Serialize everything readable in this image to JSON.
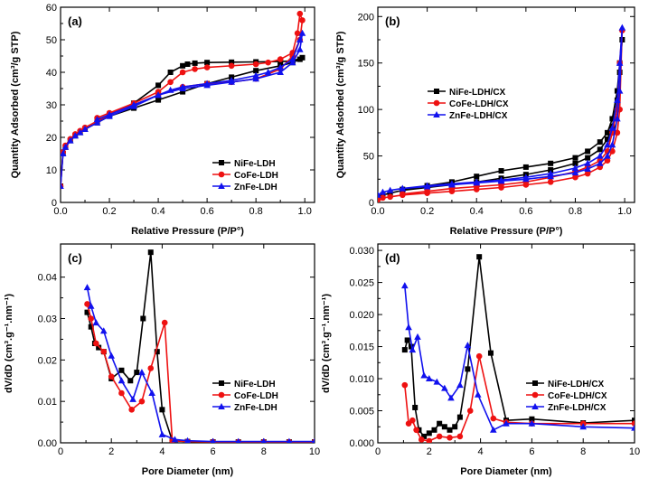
{
  "chart_data": [
    {
      "type": "line",
      "label": "(a)",
      "xlabel": "Relative Pressure (P/P°)",
      "ylabel": "Quantity Adsorbed (cm³/g STP)",
      "xlim": [
        0,
        1.04
      ],
      "ylim": [
        0,
        60
      ],
      "xticks": [
        0.0,
        0.2,
        0.4,
        0.6,
        0.8,
        1.0
      ],
      "xtick_labels": [
        "0.0",
        "0.2",
        "0.4",
        "0.6",
        "0.8",
        "1.0"
      ],
      "yticks": [
        0,
        10,
        20,
        30,
        40,
        50,
        60
      ],
      "ytick_labels": [
        "0",
        "10",
        "20",
        "30",
        "40",
        "50",
        "60"
      ],
      "legend": "bottom-right",
      "series": [
        {
          "name": "NiFe-LDH",
          "color": "#000000",
          "marker": "square",
          "x": [
            0.0,
            0.01,
            0.02,
            0.04,
            0.06,
            0.08,
            0.1,
            0.15,
            0.2,
            0.3,
            0.4,
            0.5,
            0.6,
            0.7,
            0.8,
            0.9,
            0.95,
            0.98,
            0.99,
            0.95,
            0.9,
            0.8,
            0.7,
            0.6,
            0.55,
            0.52,
            0.5,
            0.45,
            0.4,
            0.3,
            0.2,
            0.15
          ],
          "y": [
            5,
            15,
            17,
            19,
            20.5,
            21.5,
            22.5,
            24.5,
            26.5,
            29,
            31.5,
            34,
            36.5,
            38.5,
            40.5,
            42,
            43,
            44,
            44.5,
            43.5,
            43.3,
            43.2,
            43.1,
            43,
            42.8,
            42.5,
            42,
            40,
            36,
            30.5,
            27,
            25
          ]
        },
        {
          "name": "CoFe-LDH",
          "color": "#ee1111",
          "marker": "circle",
          "x": [
            0.0,
            0.01,
            0.02,
            0.04,
            0.06,
            0.08,
            0.1,
            0.15,
            0.2,
            0.3,
            0.4,
            0.5,
            0.6,
            0.7,
            0.8,
            0.9,
            0.95,
            0.98,
            0.99,
            0.98,
            0.97,
            0.95,
            0.9,
            0.85,
            0.8,
            0.7,
            0.6,
            0.55,
            0.5,
            0.45,
            0.4,
            0.3,
            0.2,
            0.15
          ],
          "y": [
            5,
            15.5,
            17.5,
            19.5,
            21,
            22,
            23,
            25,
            27,
            30,
            33,
            35.5,
            36.5,
            37,
            38,
            41,
            45,
            50,
            56,
            58,
            52,
            46,
            44,
            43,
            42.5,
            42,
            41.5,
            41,
            40,
            37,
            34,
            30.5,
            27.5,
            26
          ]
        },
        {
          "name": "ZnFe-LDH",
          "color": "#1111ee",
          "marker": "triangle",
          "x": [
            0.0,
            0.01,
            0.02,
            0.04,
            0.06,
            0.08,
            0.1,
            0.15,
            0.2,
            0.3,
            0.4,
            0.5,
            0.6,
            0.7,
            0.8,
            0.9,
            0.95,
            0.98,
            0.99,
            0.98,
            0.95,
            0.9,
            0.85,
            0.8,
            0.7,
            0.6,
            0.5,
            0.45,
            0.4,
            0.3,
            0.2,
            0.15
          ],
          "y": [
            5,
            15,
            17,
            19,
            20.5,
            21.5,
            22.5,
            24.5,
            26.5,
            29.5,
            33,
            35,
            36,
            37,
            38,
            40,
            43,
            47,
            52,
            50,
            44,
            41.5,
            40,
            39,
            37.5,
            36.5,
            35.5,
            34.5,
            33,
            30,
            27,
            25.5
          ]
        }
      ]
    },
    {
      "type": "line",
      "label": "(b)",
      "xlabel": "Relative Pressure (P/P°)",
      "ylabel": "Quantity Adsorbed (cm³/g STP)",
      "xlim": [
        0,
        1.04
      ],
      "ylim": [
        0,
        210
      ],
      "xticks": [
        0.0,
        0.2,
        0.4,
        0.6,
        0.8,
        1.0
      ],
      "xtick_labels": [
        "0.0",
        "0.2",
        "0.4",
        "0.6",
        "0.8",
        "1.0"
      ],
      "yticks": [
        0,
        50,
        100,
        150,
        200
      ],
      "ytick_labels": [
        "0",
        "50",
        "100",
        "150",
        "200"
      ],
      "legend": "center-left",
      "series": [
        {
          "name": "NiFe-LDH/CX",
          "color": "#000000",
          "marker": "square",
          "x": [
            0.0,
            0.02,
            0.05,
            0.1,
            0.2,
            0.3,
            0.4,
            0.5,
            0.6,
            0.7,
            0.8,
            0.85,
            0.9,
            0.93,
            0.95,
            0.97,
            0.98,
            0.99,
            0.98,
            0.97,
            0.95,
            0.93,
            0.9,
            0.85,
            0.8,
            0.7,
            0.6,
            0.5,
            0.4,
            0.3,
            0.2,
            0.1
          ],
          "y": [
            5,
            8,
            10,
            13,
            16,
            19,
            22,
            26,
            30,
            35,
            42,
            48,
            57,
            68,
            82,
            110,
            140,
            175,
            150,
            120,
            90,
            75,
            65,
            55,
            48,
            42,
            38,
            34,
            28,
            22,
            18,
            14
          ]
        },
        {
          "name": "CoFe-LDH/CX",
          "color": "#ee1111",
          "marker": "circle",
          "x": [
            0.0,
            0.02,
            0.05,
            0.1,
            0.2,
            0.3,
            0.4,
            0.5,
            0.6,
            0.7,
            0.8,
            0.85,
            0.9,
            0.93,
            0.95,
            0.97,
            0.98,
            0.99,
            0.98,
            0.97,
            0.95,
            0.93,
            0.9,
            0.85,
            0.8,
            0.7,
            0.6,
            0.5,
            0.4,
            0.3,
            0.2,
            0.1
          ],
          "y": [
            3,
            5,
            6,
            8,
            10,
            12,
            14,
            16,
            19,
            22,
            27,
            31,
            38,
            45,
            55,
            75,
            100,
            185,
            150,
            100,
            75,
            55,
            45,
            38,
            33,
            27,
            22,
            19,
            17,
            15,
            12,
            9
          ]
        },
        {
          "name": "ZnFe-LDH/CX",
          "color": "#1111ee",
          "marker": "triangle",
          "x": [
            0.0,
            0.02,
            0.05,
            0.1,
            0.2,
            0.3,
            0.4,
            0.5,
            0.6,
            0.7,
            0.8,
            0.85,
            0.9,
            0.93,
            0.95,
            0.97,
            0.98,
            0.99,
            0.98,
            0.97,
            0.95,
            0.93,
            0.9,
            0.85,
            0.8,
            0.7,
            0.6,
            0.5,
            0.4,
            0.3,
            0.2,
            0.1
          ],
          "y": [
            8,
            11,
            13,
            15,
            17,
            19,
            21,
            23,
            25,
            28,
            32,
            36,
            42,
            50,
            62,
            90,
            120,
            188,
            150,
            110,
            80,
            62,
            50,
            42,
            37,
            31,
            27,
            24,
            22,
            20,
            18,
            15
          ]
        }
      ]
    },
    {
      "type": "line",
      "label": "(c)",
      "xlabel": "Pore Diameter (nm)",
      "ylabel": "dV/dD (cm³.g⁻¹.nm⁻¹)",
      "xlim": [
        0,
        10
      ],
      "ylim": [
        0,
        0.048
      ],
      "xticks": [
        0,
        2,
        4,
        6,
        8,
        10
      ],
      "xtick_labels": [
        "0",
        "2",
        "4",
        "6",
        "8",
        "10"
      ],
      "yticks": [
        0.0,
        0.01,
        0.02,
        0.03,
        0.04
      ],
      "ytick_labels": [
        "0.00",
        "0.01",
        "0.02",
        "0.03",
        "0.04"
      ],
      "legend": "bottom-right",
      "series": [
        {
          "name": "NiFe-LDH",
          "color": "#000000",
          "marker": "square",
          "x": [
            1.05,
            1.2,
            1.35,
            1.5,
            1.7,
            2.0,
            2.4,
            2.75,
            3.0,
            3.25,
            3.55,
            3.8,
            4.0,
            4.4,
            5.0,
            6.0,
            7.0,
            8.0,
            9.0,
            10.0
          ],
          "y": [
            0.0315,
            0.028,
            0.024,
            0.023,
            0.022,
            0.0155,
            0.0175,
            0.015,
            0.017,
            0.03,
            0.046,
            0.022,
            0.008,
            0.0005,
            0.0003,
            0.0002,
            0.0002,
            0.0002,
            0.0002,
            0.0002
          ]
        },
        {
          "name": "CoFe-LDH",
          "color": "#ee1111",
          "marker": "circle",
          "x": [
            1.05,
            1.2,
            1.4,
            1.7,
            2.0,
            2.4,
            2.8,
            3.2,
            3.55,
            4.1,
            4.4,
            5.0,
            6.0,
            7.0,
            8.0,
            9.0,
            10.0
          ],
          "y": [
            0.0335,
            0.03,
            0.024,
            0.022,
            0.016,
            0.012,
            0.008,
            0.01,
            0.018,
            0.029,
            0.0005,
            0.0003,
            0.0002,
            0.0002,
            0.0002,
            0.0002,
            0.0002
          ]
        },
        {
          "name": "ZnFe-LDH",
          "color": "#1111ee",
          "marker": "triangle",
          "x": [
            1.05,
            1.2,
            1.4,
            1.7,
            2.0,
            2.4,
            2.85,
            3.2,
            3.6,
            4.0,
            4.5,
            5.0,
            6.0,
            7.0,
            8.0,
            9.0,
            10.0
          ],
          "y": [
            0.0375,
            0.033,
            0.029,
            0.027,
            0.021,
            0.015,
            0.0105,
            0.017,
            0.012,
            0.002,
            0.0008,
            0.0005,
            0.0003,
            0.0003,
            0.0003,
            0.0003,
            0.0003
          ]
        }
      ]
    },
    {
      "type": "line",
      "label": "(d)",
      "xlabel": "Pore Diameter (nm)",
      "ylabel": "dV/dD (cm³.g⁻¹.nm⁻¹)",
      "xlim": [
        0,
        10
      ],
      "ylim": [
        0,
        0.031
      ],
      "xticks": [
        0,
        2,
        4,
        6,
        8,
        10
      ],
      "xtick_labels": [
        "0",
        "2",
        "4",
        "6",
        "8",
        "10"
      ],
      "yticks": [
        0.0,
        0.005,
        0.01,
        0.015,
        0.02,
        0.025,
        0.03
      ],
      "ytick_labels": [
        "0.000",
        "0.005",
        "0.010",
        "0.015",
        "0.020",
        "0.025",
        "0.030"
      ],
      "legend": "center-right",
      "series": [
        {
          "name": "NiFe-LDH/CX",
          "color": "#000000",
          "marker": "square",
          "x": [
            1.05,
            1.15,
            1.3,
            1.45,
            1.6,
            1.8,
            2.0,
            2.2,
            2.4,
            2.6,
            2.8,
            3.0,
            3.2,
            3.5,
            3.95,
            4.4,
            5.0,
            6.0,
            8.0,
            10.0
          ],
          "y": [
            0.0145,
            0.016,
            0.015,
            0.0055,
            0.002,
            0.001,
            0.0015,
            0.002,
            0.003,
            0.0025,
            0.002,
            0.0025,
            0.004,
            0.0115,
            0.029,
            0.014,
            0.0035,
            0.0037,
            0.0031,
            0.0035
          ]
        },
        {
          "name": "CoFe-LDH/CX",
          "color": "#ee1111",
          "marker": "circle",
          "x": [
            1.05,
            1.2,
            1.35,
            1.5,
            1.7,
            2.0,
            2.4,
            2.8,
            3.2,
            3.6,
            3.95,
            4.5,
            5.0,
            6.0,
            8.0,
            10.0
          ],
          "y": [
            0.009,
            0.003,
            0.0035,
            0.002,
            0.0005,
            0.0003,
            0.001,
            0.0008,
            0.001,
            0.005,
            0.0135,
            0.0038,
            0.0032,
            0.003,
            0.003,
            0.003
          ]
        },
        {
          "name": "ZnFe-LDH/CX",
          "color": "#1111ee",
          "marker": "triangle",
          "x": [
            1.05,
            1.2,
            1.35,
            1.55,
            1.8,
            2.0,
            2.3,
            2.6,
            2.85,
            3.2,
            3.5,
            3.9,
            4.5,
            5.0,
            6.0,
            8.0,
            10.0
          ],
          "y": [
            0.0245,
            0.018,
            0.0145,
            0.0165,
            0.0105,
            0.01,
            0.0095,
            0.0085,
            0.007,
            0.009,
            0.0152,
            0.0075,
            0.002,
            0.003,
            0.003,
            0.0025,
            0.0023
          ]
        }
      ]
    }
  ]
}
